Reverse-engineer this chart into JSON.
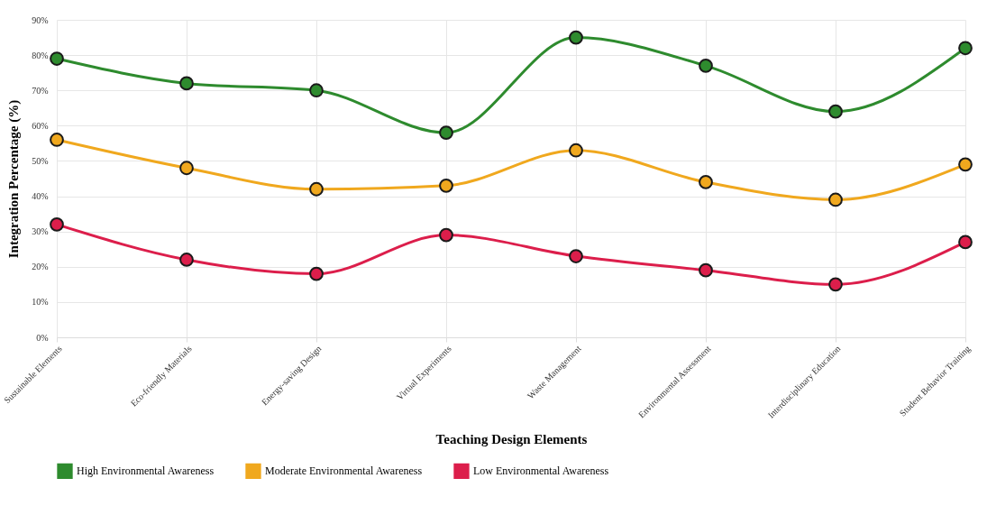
{
  "chart_data": {
    "type": "line",
    "xlabel": "Teaching Design Elements",
    "ylabel": "Integration Percentage (%)",
    "categories": [
      "Sustainable Elements",
      "Eco-friendly Materials",
      "Energy-saving Design",
      "Virtual Experiments",
      "Waste Management",
      "Environmental Assessment",
      "Interdisciplinary Education",
      "Student Behavior Training"
    ],
    "series": [
      {
        "name": "High Environmental Awareness",
        "color": "#2e8b2e",
        "values": [
          79,
          72,
          70,
          58,
          85,
          77,
          64,
          82
        ]
      },
      {
        "name": "Moderate Environmental Awareness",
        "color": "#f0a81e",
        "values": [
          56,
          48,
          42,
          43,
          53,
          44,
          39,
          49
        ]
      },
      {
        "name": "Low Environmental Awareness",
        "color": "#dc1e4b",
        "values": [
          32,
          22,
          18,
          29,
          23,
          19,
          15,
          27
        ]
      }
    ],
    "ylim": [
      0,
      90
    ],
    "yticks": [
      {
        "value": 0,
        "label": "0%"
      },
      {
        "value": 10,
        "label": "10%"
      },
      {
        "value": 20,
        "label": "20%"
      },
      {
        "value": 30,
        "label": "30%"
      },
      {
        "value": 40,
        "label": "40%"
      },
      {
        "value": 50,
        "label": "50%"
      },
      {
        "value": 60,
        "label": "60%"
      },
      {
        "value": 70,
        "label": "70%"
      },
      {
        "value": 80,
        "label": "80%"
      },
      {
        "value": 90,
        "label": "90%"
      }
    ],
    "grid": true,
    "legend": "bottom",
    "marker": "circle",
    "line_style": "solid"
  }
}
